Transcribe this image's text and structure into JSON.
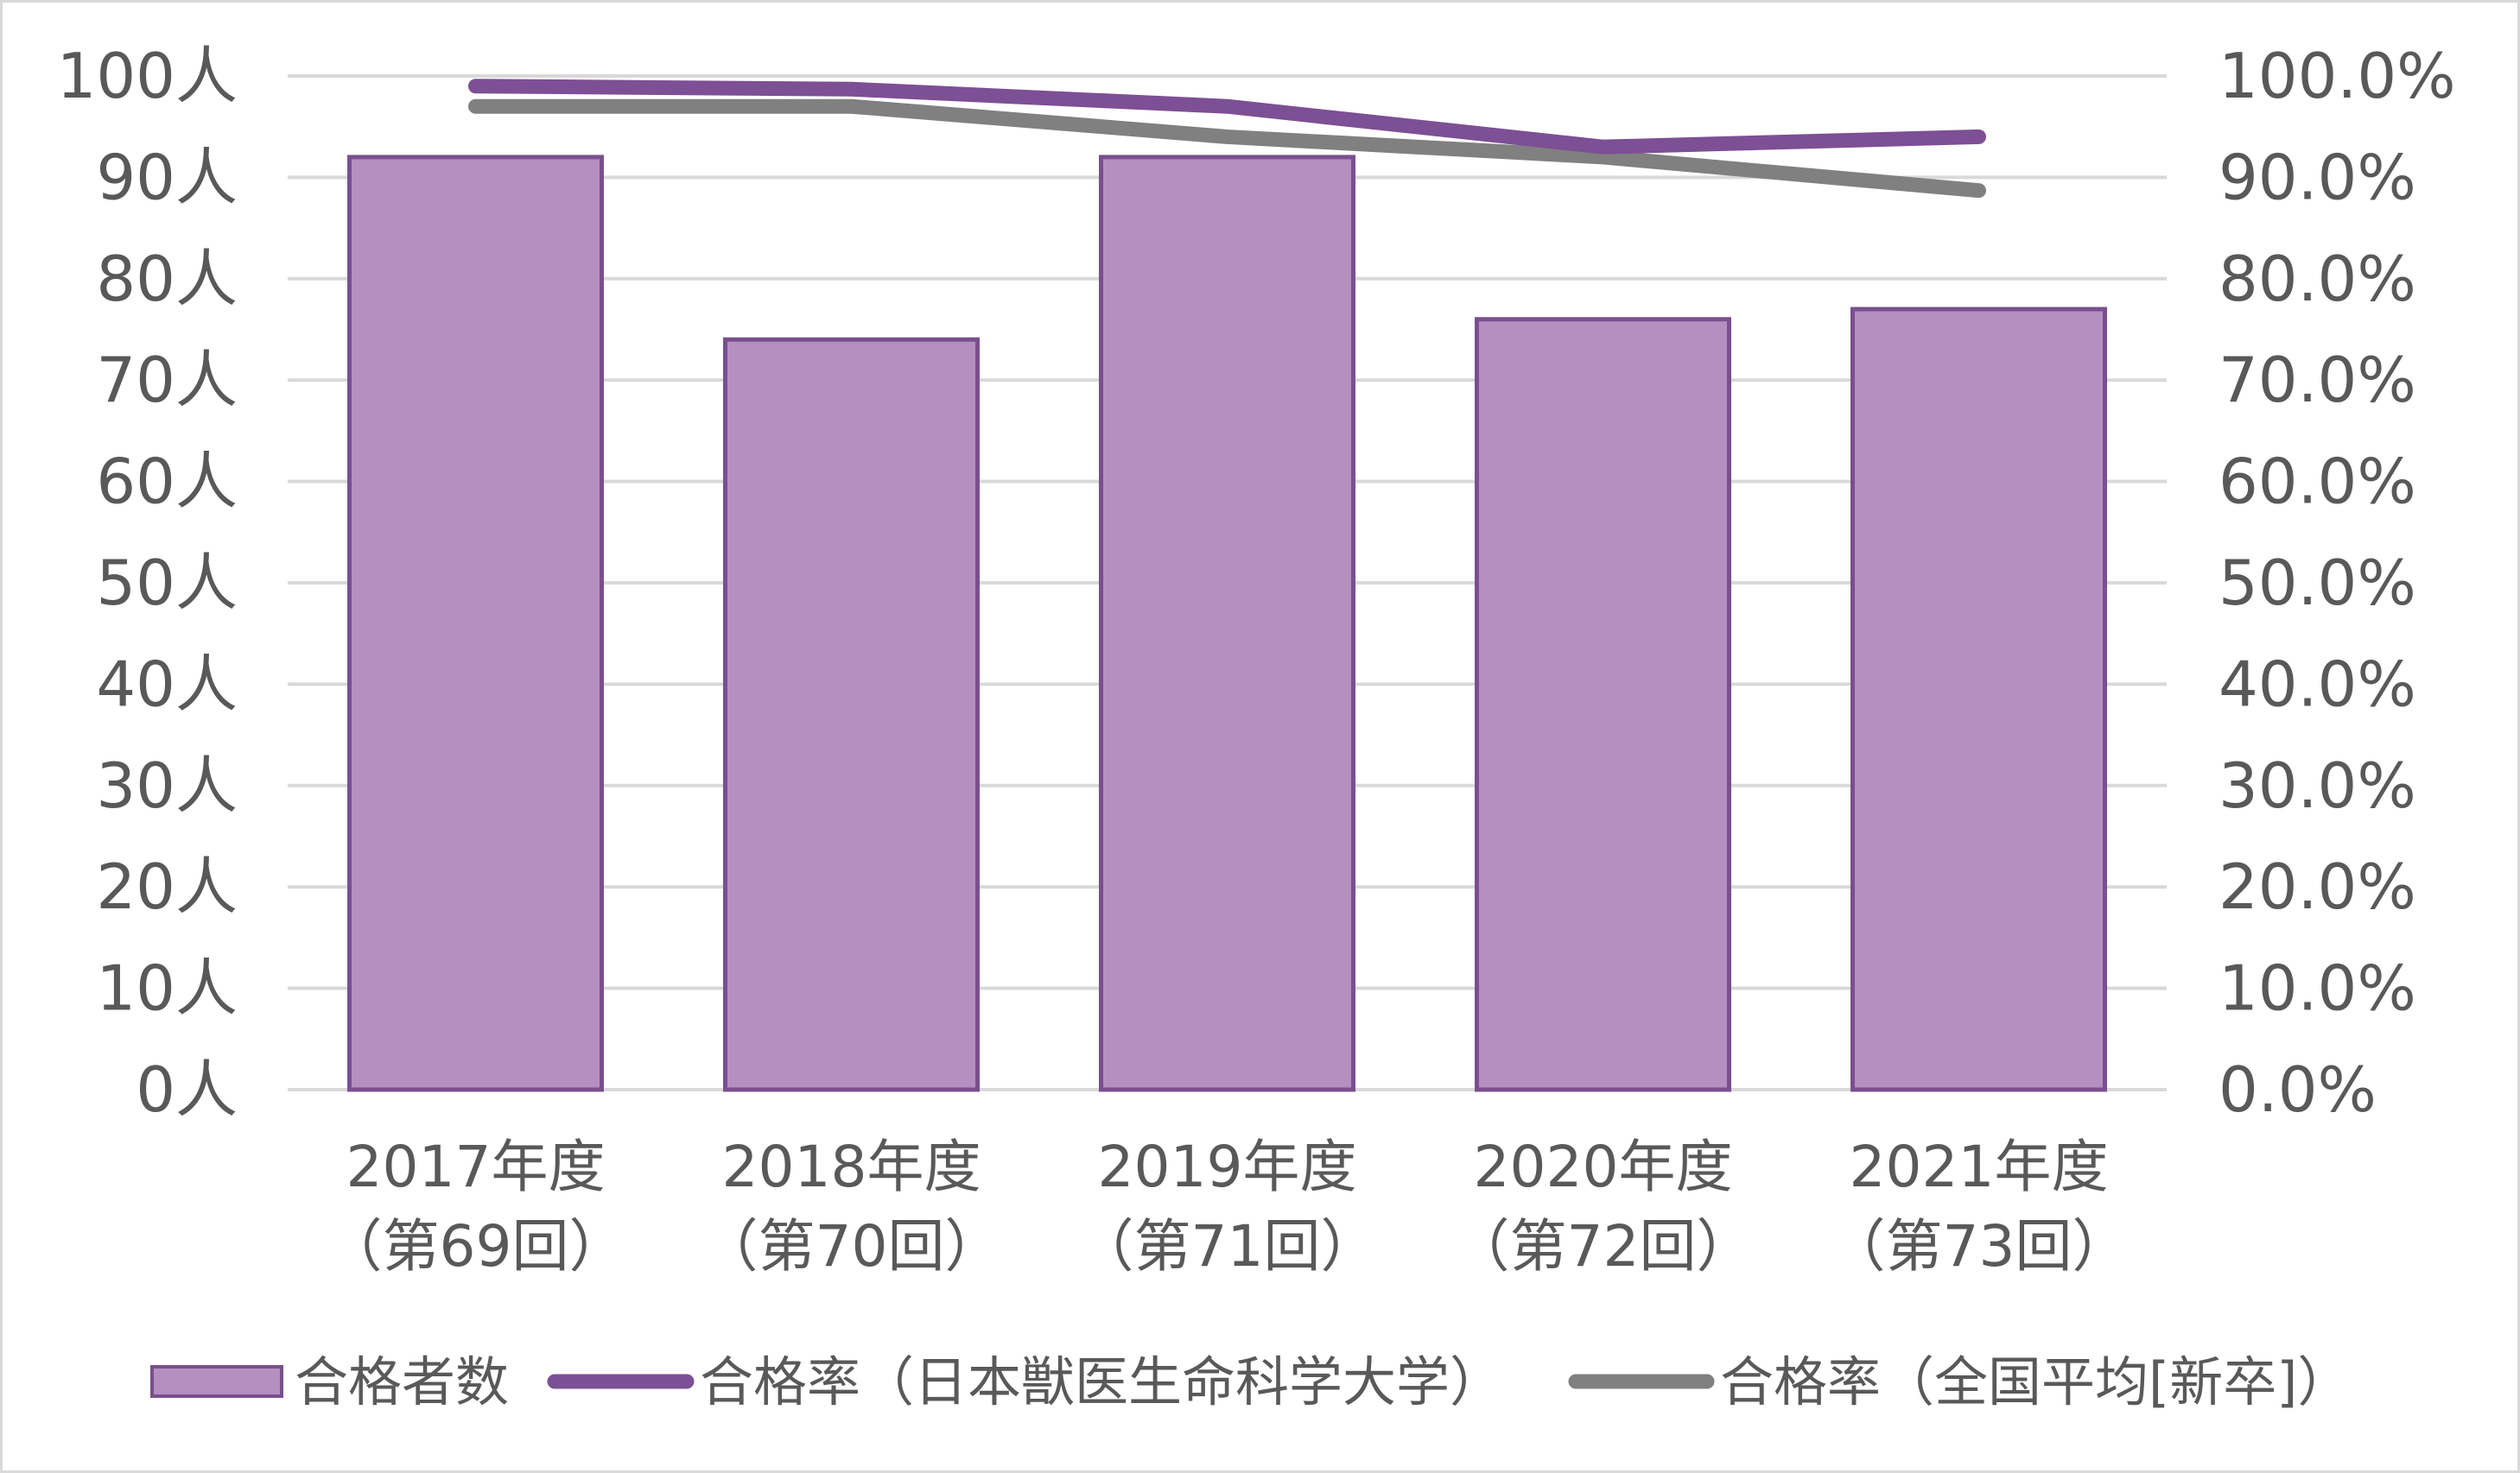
{
  "colors": {
    "bar_fill": "#b48fc0",
    "bar_stroke": "#7a4f8e",
    "line_school": "#7d4f94",
    "line_national": "#808080",
    "grid": "#d9d9d9",
    "text": "#595959"
  },
  "chart_data": {
    "type": "bar",
    "categories": [
      [
        "2017年度",
        "（第69回）"
      ],
      [
        "2018年度",
        "（第70回）"
      ],
      [
        "2019年度",
        "（第71回）"
      ],
      [
        "2020年度",
        "（第72回）"
      ],
      [
        "2021年度",
        "（第73回）"
      ]
    ],
    "y_left": {
      "ylim": [
        0,
        100
      ],
      "ticks": [
        "0人",
        "10人",
        "20人",
        "30人",
        "40人",
        "50人",
        "60人",
        "70人",
        "80人",
        "90人",
        "100人"
      ]
    },
    "y_right": {
      "ylim": [
        0,
        100
      ],
      "ticks": [
        "0.0%",
        "10.0%",
        "20.0%",
        "30.0%",
        "40.0%",
        "50.0%",
        "60.0%",
        "70.0%",
        "80.0%",
        "90.0%",
        "100.0%"
      ]
    },
    "grid": true,
    "legend_position": "bottom",
    "series": [
      {
        "name": "合格者数",
        "type": "bar",
        "axis": "left",
        "values": [
          92,
          74,
          92,
          76,
          77
        ]
      },
      {
        "name": "合格率（日本獣医生命科学大学）",
        "type": "line",
        "axis": "right",
        "values": [
          99.0,
          98.7,
          97.0,
          93.0,
          94.0
        ]
      },
      {
        "name": "合格率（全国平均[新卒]）",
        "type": "line",
        "axis": "right",
        "values": [
          97.0,
          97.0,
          94.0,
          92.0,
          88.7
        ]
      }
    ]
  }
}
